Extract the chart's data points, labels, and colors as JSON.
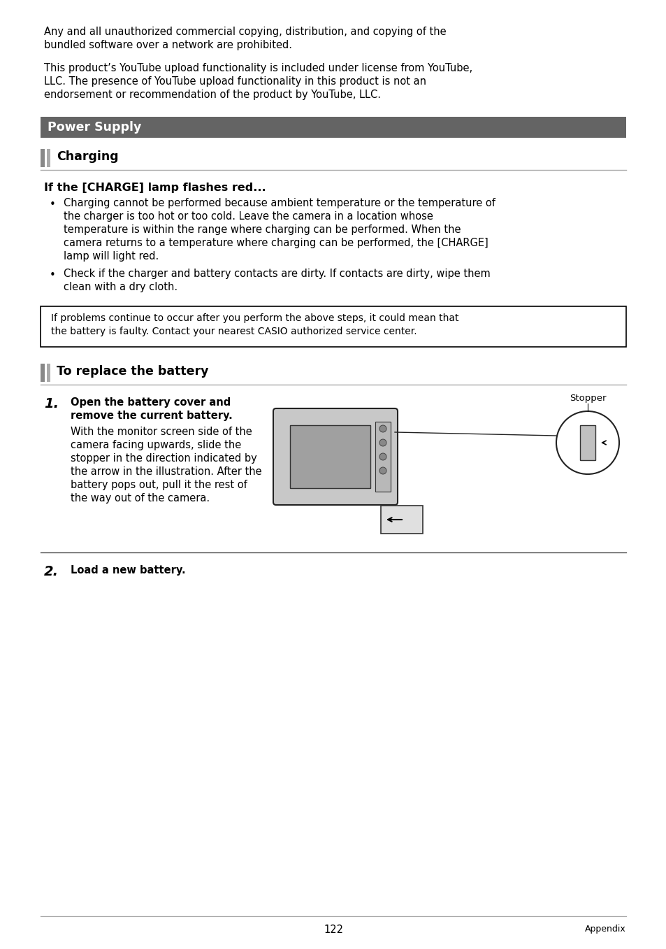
{
  "page_width": 9.54,
  "page_height": 13.57,
  "bg_color": "#ffffff",
  "text_color": "#000000",
  "para1": "Any and all unauthorized commercial copying, distribution, and copying of the\nbundled software over a network are prohibited.",
  "para2": "This product’s YouTube upload functionality is included under license from YouTube,\nLLC. The presence of YouTube upload functionality in this product is not an\nendorsement or recommendation of the product by YouTube, LLC.",
  "section_header": "Power Supply",
  "section_header_bg": "#646464",
  "section_header_color": "#ffffff",
  "sub_header": "Charging",
  "sub2_header": "To replace the battery",
  "sub_accent_color": "#888888",
  "sub_line_color": "#aaaaaa",
  "charge_title": "If the [CHARGE] lamp flashes red...",
  "bullet1": "Charging cannot be performed because ambient temperature or the temperature of\nthe charger is too hot or too cold. Leave the camera in a location whose\ntemperature is within the range where charging can be performed. When the\ncamera returns to a temperature where charging can be performed, the [CHARGE]\nlamp will light red.",
  "bullet2": "Check if the charger and battery contacts are dirty. If contacts are dirty, wipe them\nclean with a dry cloth.",
  "note_text": "If problems continue to occur after you perform the above steps, it could mean that\nthe battery is faulty. Contact your nearest CASIO authorized service center.",
  "step1_num": "1.",
  "step1_bold": "Open the battery cover and\nremove the current battery.",
  "step1_text": "With the monitor screen side of the\ncamera facing upwards, slide the\nstopper in the direction indicated by\nthe arrow in the illustration. After the\nbattery pops out, pull it the rest of\nthe way out of the camera.",
  "stopper_label": "Stopper",
  "step2_num": "2.",
  "step2_bold": "Load a new battery.",
  "page_number": "122",
  "footer_right": "Appendix",
  "divider_color": "#aaaaaa",
  "dark_divider": "#555555"
}
